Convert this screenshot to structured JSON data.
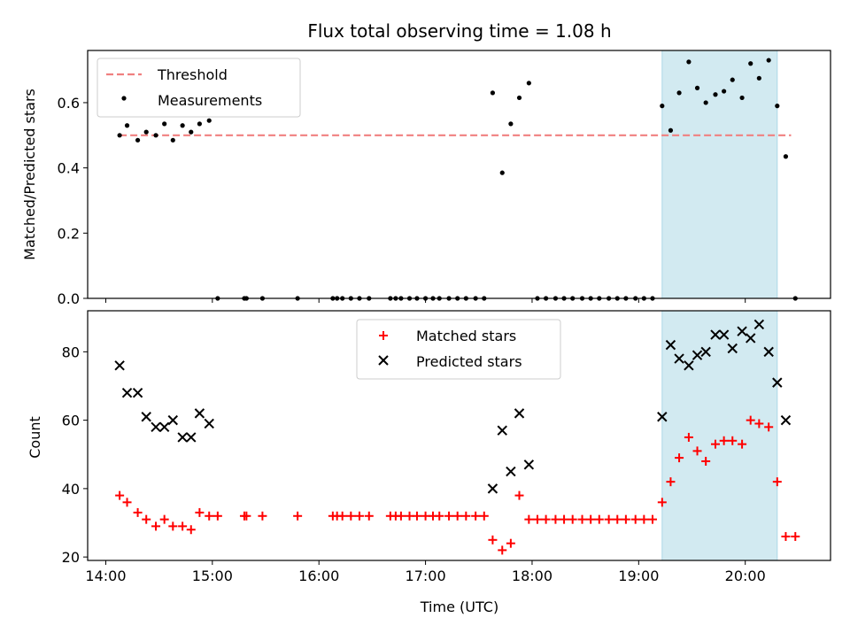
{
  "chart_data": [
    {
      "type": "scatter",
      "title": "Flux total observing time = 1.08 h",
      "xlabel": "",
      "ylabel": "Matched/Predicted stars",
      "xlim": [
        13.83,
        20.8
      ],
      "ylim": [
        0,
        0.76
      ],
      "yticks": [
        0.0,
        0.2,
        0.4,
        0.6
      ],
      "ytick_labels": [
        "0.0",
        "0.2",
        "0.4",
        "0.6"
      ],
      "highlight_span": [
        19.22,
        20.3
      ],
      "highlight_color": "#add8e6",
      "threshold": {
        "name": "Threshold",
        "value": 0.5,
        "x_range": [
          14.13,
          20.43
        ],
        "color": "#f08080"
      },
      "legend": [
        "Threshold",
        "Measurements"
      ],
      "legend_position": "upper left",
      "series": [
        {
          "name": "Measurements",
          "color": "#000000",
          "marker": "dot",
          "x": [
            14.13,
            14.2,
            14.3,
            14.38,
            14.47,
            14.55,
            14.63,
            14.72,
            14.8,
            14.88,
            14.97,
            15.05,
            15.3,
            15.32,
            15.47,
            15.8,
            16.13,
            16.17,
            16.22,
            16.3,
            16.38,
            16.47,
            16.67,
            16.72,
            16.77,
            16.85,
            16.92,
            17.0,
            17.07,
            17.13,
            17.22,
            17.3,
            17.38,
            17.47,
            17.55,
            17.63,
            17.72,
            17.8,
            17.88,
            17.97,
            18.05,
            18.13,
            18.22,
            18.3,
            18.38,
            18.47,
            18.55,
            18.63,
            18.72,
            18.8,
            18.88,
            18.97,
            19.05,
            19.13,
            19.22,
            19.3,
            19.38,
            19.47,
            19.55,
            19.63,
            19.72,
            19.8,
            19.88,
            19.97,
            20.05,
            20.13,
            20.22,
            20.3,
            20.38,
            20.47
          ],
          "y": [
            0.5,
            0.53,
            0.485,
            0.51,
            0.5,
            0.535,
            0.485,
            0.53,
            0.51,
            0.535,
            0.545,
            0,
            0,
            0,
            0,
            0,
            0,
            0,
            0,
            0,
            0,
            0,
            0,
            0,
            0,
            0,
            0,
            0,
            0,
            0,
            0,
            0,
            0,
            0,
            0,
            0.63,
            0.385,
            0.535,
            0.615,
            0.66,
            0,
            0,
            0,
            0,
            0,
            0,
            0,
            0,
            0,
            0,
            0,
            0,
            0,
            0,
            0.59,
            0.515,
            0.63,
            0.725,
            0.645,
            0.6,
            0.625,
            0.635,
            0.67,
            0.615,
            0.72,
            0.675,
            0.73,
            0.59,
            0.435,
            0
          ]
        }
      ]
    },
    {
      "type": "scatter",
      "title": "",
      "xlabel": "Time (UTC)",
      "ylabel": "Count",
      "xlim": [
        13.83,
        20.8
      ],
      "ylim": [
        19,
        92
      ],
      "yticks": [
        20,
        40,
        60,
        80
      ],
      "ytick_labels": [
        "20",
        "40",
        "60",
        "80"
      ],
      "xticks": [
        14,
        15,
        16,
        17,
        18,
        19,
        20
      ],
      "xtick_labels": [
        "14:00",
        "15:00",
        "16:00",
        "17:00",
        "18:00",
        "19:00",
        "20:00"
      ],
      "highlight_span": [
        19.22,
        20.3
      ],
      "highlight_color": "#add8e6",
      "legend": [
        "Matched stars",
        "Predicted stars"
      ],
      "legend_position": "upper center",
      "series": [
        {
          "name": "Matched stars",
          "color": "#ff0000",
          "marker": "plus",
          "x": [
            14.13,
            14.2,
            14.3,
            14.38,
            14.47,
            14.55,
            14.63,
            14.72,
            14.8,
            14.88,
            14.97,
            15.05,
            15.3,
            15.32,
            15.47,
            15.8,
            16.13,
            16.17,
            16.22,
            16.3,
            16.38,
            16.47,
            16.67,
            16.72,
            16.77,
            16.85,
            16.92,
            17.0,
            17.07,
            17.13,
            17.22,
            17.3,
            17.38,
            17.47,
            17.55,
            17.63,
            17.72,
            17.8,
            17.88,
            17.97,
            18.05,
            18.13,
            18.22,
            18.3,
            18.38,
            18.47,
            18.55,
            18.63,
            18.72,
            18.8,
            18.88,
            18.97,
            19.05,
            19.13,
            19.22,
            19.3,
            19.38,
            19.47,
            19.55,
            19.63,
            19.72,
            19.8,
            19.88,
            19.97,
            20.05,
            20.13,
            20.22,
            20.3,
            20.38,
            20.47
          ],
          "y": [
            38,
            36,
            33,
            31,
            29,
            31,
            29,
            29,
            28,
            33,
            32,
            32,
            32,
            32,
            32,
            32,
            32,
            32,
            32,
            32,
            32,
            32,
            32,
            32,
            32,
            32,
            32,
            32,
            32,
            32,
            32,
            32,
            32,
            32,
            32,
            25,
            22,
            24,
            38,
            31,
            31,
            31,
            31,
            31,
            31,
            31,
            31,
            31,
            31,
            31,
            31,
            31,
            31,
            31,
            36,
            42,
            49,
            55,
            51,
            48,
            53,
            54,
            54,
            53,
            60,
            59,
            58,
            42,
            26,
            26
          ]
        },
        {
          "name": "Predicted stars",
          "color": "#000000",
          "marker": "x",
          "x": [
            14.13,
            14.2,
            14.3,
            14.38,
            14.47,
            14.55,
            14.63,
            14.72,
            14.8,
            14.88,
            14.97,
            17.63,
            17.72,
            17.8,
            17.88,
            17.97,
            19.22,
            19.3,
            19.38,
            19.47,
            19.55,
            19.63,
            19.72,
            19.8,
            19.88,
            19.97,
            20.05,
            20.13,
            20.22,
            20.3,
            20.38
          ],
          "y": [
            76,
            68,
            68,
            61,
            58,
            58,
            60,
            55,
            55,
            62,
            59,
            40,
            57,
            45,
            62,
            47,
            61,
            82,
            78,
            76,
            79,
            80,
            85,
            85,
            81,
            86,
            84,
            88,
            80,
            71,
            60
          ]
        }
      ]
    }
  ]
}
